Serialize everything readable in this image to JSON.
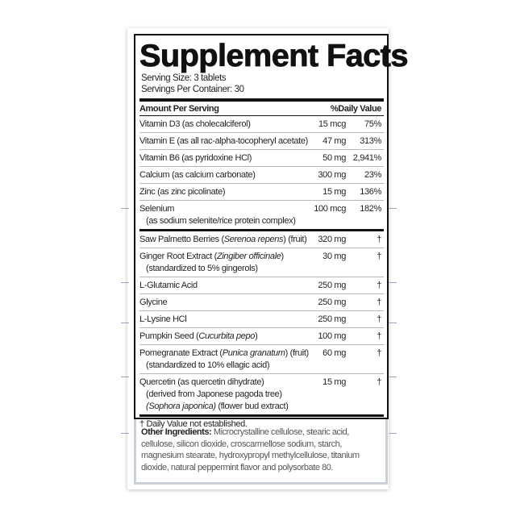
{
  "title": "Supplement Facts",
  "serving_size": "Serving Size: 3 tablets",
  "servings_per_container": "Servings Per Container: 30",
  "header": {
    "amount": "Amount Per Serving",
    "dv": "%Daily Value"
  },
  "section1": [
    {
      "lines": [
        [
          {
            "text": "Vitamin D3 (as cholecalciferol)"
          }
        ]
      ],
      "amount": "15 mcg",
      "dv": "75%"
    },
    {
      "lines": [
        [
          {
            "text": "Vitamin E (as all rac-alpha-tocopheryl acetate)"
          }
        ]
      ],
      "amount": "47 mg",
      "dv": "313%"
    },
    {
      "lines": [
        [
          {
            "text": "Vitamin B6 (as pyridoxine HCl)"
          }
        ]
      ],
      "amount": "50 mg",
      "dv": "2,941%"
    },
    {
      "lines": [
        [
          {
            "text": "Calcium (as calcium carbonate)"
          }
        ]
      ],
      "amount": "300 mg",
      "dv": "23%"
    },
    {
      "lines": [
        [
          {
            "text": "Zinc (as zinc picolinate)"
          }
        ]
      ],
      "amount": "15 mg",
      "dv": "136%"
    },
    {
      "lines": [
        [
          {
            "text": "Selenium"
          }
        ],
        [
          {
            "text": "(as sodium selenite/rice protein complex)"
          }
        ]
      ],
      "amount": "100 mcg",
      "dv": "182%"
    }
  ],
  "section2": [
    {
      "lines": [
        [
          {
            "text": "Saw Palmetto Berries ("
          },
          {
            "text": "Serenoa repens",
            "italic": true
          },
          {
            "text": ") (fruit)"
          }
        ]
      ],
      "amount": "320 mg",
      "dv": "†"
    },
    {
      "lines": [
        [
          {
            "text": "Ginger Root Extract ("
          },
          {
            "text": "Zingiber officinale",
            "italic": true
          },
          {
            "text": ")"
          }
        ],
        [
          {
            "text": "(standardized to 5% gingerols)"
          }
        ]
      ],
      "amount": "30 mg",
      "dv": "†"
    },
    {
      "lines": [
        [
          {
            "text": "L-Glutamic Acid"
          }
        ]
      ],
      "amount": "250 mg",
      "dv": "†"
    },
    {
      "lines": [
        [
          {
            "text": "Glycine"
          }
        ]
      ],
      "amount": "250 mg",
      "dv": "†"
    },
    {
      "lines": [
        [
          {
            "text": "L-Lysine HCl"
          }
        ]
      ],
      "amount": "250 mg",
      "dv": "†"
    },
    {
      "lines": [
        [
          {
            "text": "Pumpkin Seed ("
          },
          {
            "text": "Cucurbita pepo",
            "italic": true
          },
          {
            "text": ")"
          }
        ]
      ],
      "amount": "100 mg",
      "dv": "†"
    },
    {
      "lines": [
        [
          {
            "text": "Pomegranate Extract ("
          },
          {
            "text": "Punica granatum",
            "italic": true
          },
          {
            "text": ") (fruit)"
          }
        ],
        [
          {
            "text": "(standardized to 10% ellagic acid)"
          }
        ]
      ],
      "amount": "60 mg",
      "dv": "†"
    },
    {
      "lines": [
        [
          {
            "text": "Quercetin (as quercetin dihydrate)"
          }
        ],
        [
          {
            "text": "(derived from Japonese pagoda tree)"
          }
        ],
        [
          {
            "text": "(Sophora japonica)",
            "italic": true
          },
          {
            "text": " (flower bud extract)"
          }
        ]
      ],
      "amount": "15 mg",
      "dv": "†"
    }
  ],
  "footnote": "† Daily Value not established.",
  "other_ingredients": {
    "label": "Other Ingredients:",
    "text": " Microcrystalline cellulose, stearic acid, cellulose, silicon dioxide, croscarmellose sodium, starch, magnesium stearate, hydroxypropyl methylcellulose, titanium dioxide, natural peppermint flavor and polysorbate 80."
  },
  "colors": {
    "border": "#111111",
    "other_border": "#c9d0dc",
    "accent_lines": "#9aa6bd"
  }
}
